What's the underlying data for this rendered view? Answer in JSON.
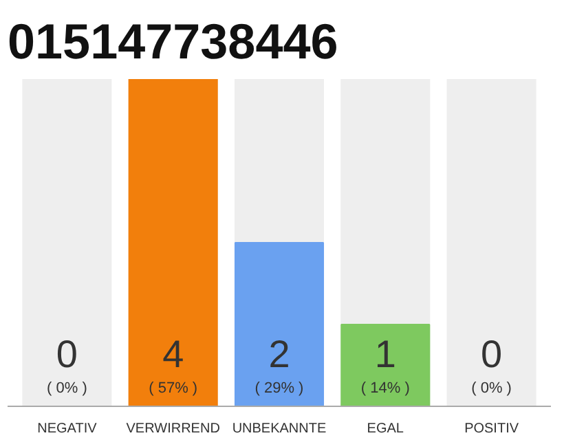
{
  "chart_data": {
    "type": "bar",
    "title": "015147738446",
    "categories": [
      "NEGATIV",
      "VERWIRREND",
      "UNBEKANNTE",
      "EGAL",
      "POSITIV"
    ],
    "values": [
      0,
      4,
      2,
      1,
      0
    ],
    "colors": [
      "#999999",
      "#f27f0c",
      "#6aa1f0",
      "#7ec95f",
      "#999999"
    ],
    "data_labels": true,
    "annotations": [
      "( 0% )",
      "( 57% )",
      "( 29% )",
      "( 14% )",
      "( 0% )"
    ],
    "grid": false
  }
}
